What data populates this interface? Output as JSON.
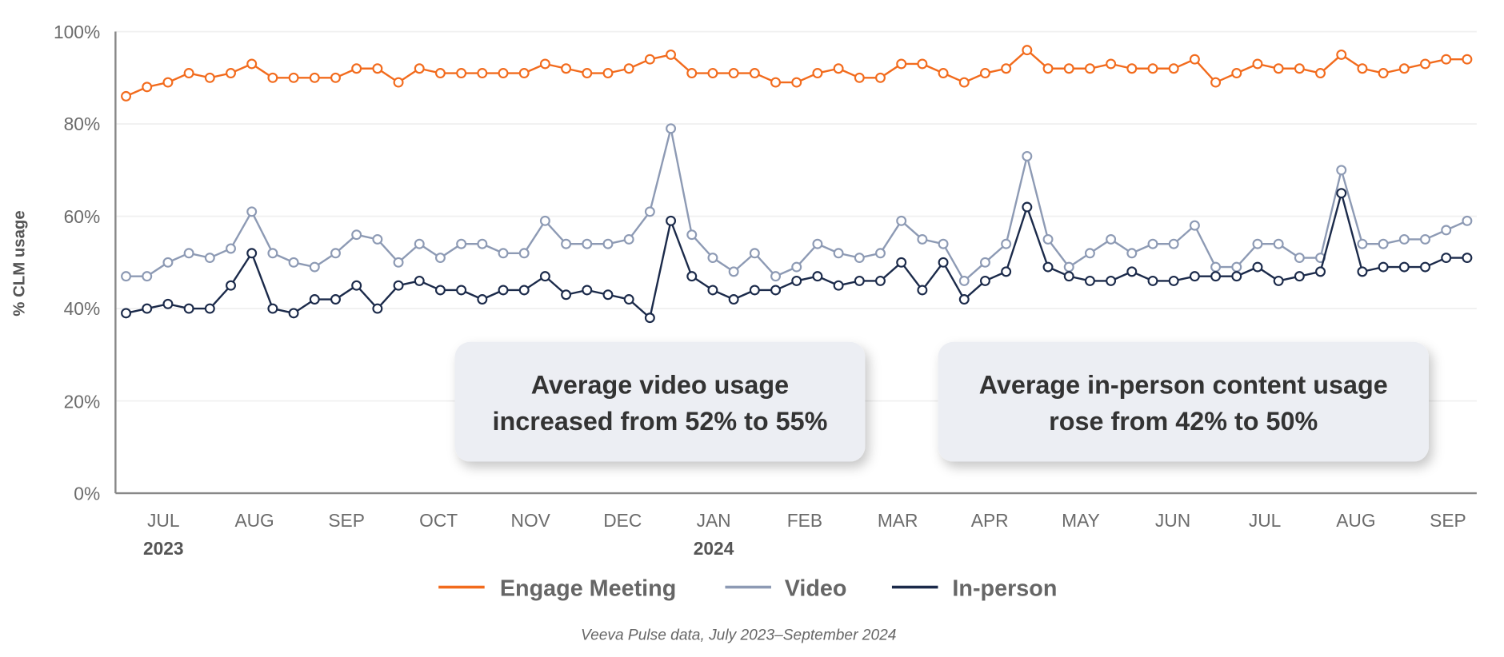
{
  "chart_data": {
    "type": "line",
    "title": "",
    "ylabel": "% CLM usage",
    "xlabel": "",
    "ylim": [
      0,
      100
    ],
    "y_ticks": [
      "0%",
      "20%",
      "40%",
      "60%",
      "80%",
      "100%"
    ],
    "x_ticks": [
      "JUL",
      "AUG",
      "SEP",
      "OCT",
      "NOV",
      "DEC",
      "JAN",
      "FEB",
      "MAR",
      "APR",
      "MAY",
      "JUN",
      "JUL",
      "AUG",
      "SEP"
    ],
    "year_labels": [
      "2023",
      "2024"
    ],
    "grid": true,
    "legend_position": "bottom",
    "series": [
      {
        "name": "Engage Meeting",
        "color": "#f26b1d",
        "values": [
          86,
          88,
          89,
          91,
          90,
          91,
          93,
          90,
          90,
          90,
          90,
          92,
          92,
          89,
          92,
          91,
          91,
          91,
          91,
          91,
          93,
          92,
          91,
          91,
          92,
          94,
          95,
          91,
          91,
          91,
          91,
          89,
          89,
          91,
          92,
          90,
          90,
          93,
          93,
          91,
          89,
          91,
          92,
          96,
          92,
          92,
          92,
          93,
          92,
          92,
          92,
          94,
          89,
          91,
          93,
          92,
          92,
          91,
          95,
          92,
          91,
          92,
          93,
          94,
          94
        ]
      },
      {
        "name": "Video",
        "color": "#8d9ab4",
        "values": [
          47,
          47,
          50,
          52,
          51,
          53,
          61,
          52,
          50,
          49,
          52,
          56,
          55,
          50,
          54,
          51,
          54,
          54,
          52,
          52,
          59,
          54,
          54,
          54,
          55,
          61,
          79,
          56,
          51,
          48,
          52,
          47,
          49,
          54,
          52,
          51,
          52,
          59,
          55,
          54,
          46,
          50,
          54,
          73,
          55,
          49,
          52,
          55,
          52,
          54,
          54,
          58,
          49,
          49,
          54,
          54,
          51,
          51,
          70,
          54,
          54,
          55,
          55,
          57,
          59
        ]
      },
      {
        "name": "In-person",
        "color": "#1b2a4a",
        "values": [
          39,
          40,
          41,
          40,
          40,
          45,
          52,
          40,
          39,
          42,
          42,
          45,
          40,
          45,
          46,
          44,
          44,
          42,
          44,
          44,
          47,
          43,
          44,
          43,
          42,
          38,
          59,
          47,
          44,
          42,
          44,
          44,
          46,
          47,
          45,
          46,
          46,
          50,
          44,
          50,
          42,
          46,
          48,
          62,
          49,
          47,
          46,
          46,
          48,
          46,
          46,
          47,
          47,
          47,
          49,
          46,
          47,
          48,
          65,
          48,
          49,
          49,
          49,
          51,
          51
        ]
      }
    ],
    "annotations": [
      {
        "lines": [
          "Average video usage",
          "increased from 52% to 55%"
        ]
      },
      {
        "lines": [
          "Average in-person content usage",
          "rose from 42% to 50%"
        ]
      }
    ],
    "source": "Veeva Pulse data, July 2023–September 2024"
  }
}
